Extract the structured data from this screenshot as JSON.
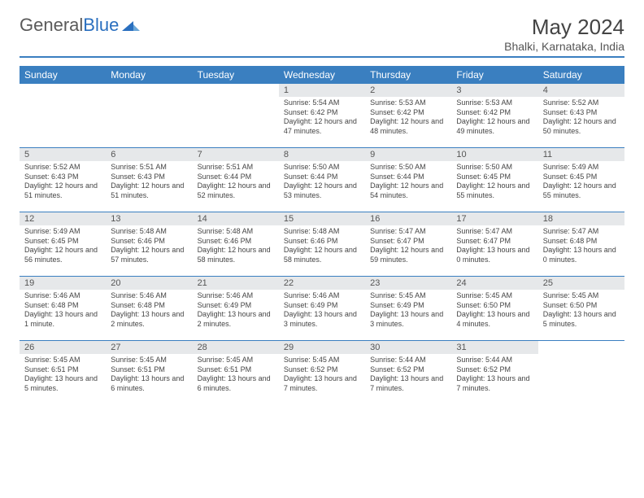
{
  "logo": {
    "word1": "General",
    "word2": "Blue"
  },
  "title": "May 2024",
  "subtitle": "Bhalki, Karnataka, India",
  "colors": {
    "header_bar": "#3a7fc0",
    "daynum_bg": "#e6e8ea",
    "text": "#444444",
    "divider": "#3a7fc0"
  },
  "fonts": {
    "title_size": 26,
    "subtitle_size": 14,
    "dayhead_size": 12,
    "cell_size": 9
  },
  "dayNames": [
    "Sunday",
    "Monday",
    "Tuesday",
    "Wednesday",
    "Thursday",
    "Friday",
    "Saturday"
  ],
  "leadingBlank": 3,
  "days": [
    {
      "n": "1",
      "sr": "5:54 AM",
      "ss": "6:42 PM",
      "dl": "12 hours and 47 minutes."
    },
    {
      "n": "2",
      "sr": "5:53 AM",
      "ss": "6:42 PM",
      "dl": "12 hours and 48 minutes."
    },
    {
      "n": "3",
      "sr": "5:53 AM",
      "ss": "6:42 PM",
      "dl": "12 hours and 49 minutes."
    },
    {
      "n": "4",
      "sr": "5:52 AM",
      "ss": "6:43 PM",
      "dl": "12 hours and 50 minutes."
    },
    {
      "n": "5",
      "sr": "5:52 AM",
      "ss": "6:43 PM",
      "dl": "12 hours and 51 minutes."
    },
    {
      "n": "6",
      "sr": "5:51 AM",
      "ss": "6:43 PM",
      "dl": "12 hours and 51 minutes."
    },
    {
      "n": "7",
      "sr": "5:51 AM",
      "ss": "6:44 PM",
      "dl": "12 hours and 52 minutes."
    },
    {
      "n": "8",
      "sr": "5:50 AM",
      "ss": "6:44 PM",
      "dl": "12 hours and 53 minutes."
    },
    {
      "n": "9",
      "sr": "5:50 AM",
      "ss": "6:44 PM",
      "dl": "12 hours and 54 minutes."
    },
    {
      "n": "10",
      "sr": "5:50 AM",
      "ss": "6:45 PM",
      "dl": "12 hours and 55 minutes."
    },
    {
      "n": "11",
      "sr": "5:49 AM",
      "ss": "6:45 PM",
      "dl": "12 hours and 55 minutes."
    },
    {
      "n": "12",
      "sr": "5:49 AM",
      "ss": "6:45 PM",
      "dl": "12 hours and 56 minutes."
    },
    {
      "n": "13",
      "sr": "5:48 AM",
      "ss": "6:46 PM",
      "dl": "12 hours and 57 minutes."
    },
    {
      "n": "14",
      "sr": "5:48 AM",
      "ss": "6:46 PM",
      "dl": "12 hours and 58 minutes."
    },
    {
      "n": "15",
      "sr": "5:48 AM",
      "ss": "6:46 PM",
      "dl": "12 hours and 58 minutes."
    },
    {
      "n": "16",
      "sr": "5:47 AM",
      "ss": "6:47 PM",
      "dl": "12 hours and 59 minutes."
    },
    {
      "n": "17",
      "sr": "5:47 AM",
      "ss": "6:47 PM",
      "dl": "13 hours and 0 minutes."
    },
    {
      "n": "18",
      "sr": "5:47 AM",
      "ss": "6:48 PM",
      "dl": "13 hours and 0 minutes."
    },
    {
      "n": "19",
      "sr": "5:46 AM",
      "ss": "6:48 PM",
      "dl": "13 hours and 1 minute."
    },
    {
      "n": "20",
      "sr": "5:46 AM",
      "ss": "6:48 PM",
      "dl": "13 hours and 2 minutes."
    },
    {
      "n": "21",
      "sr": "5:46 AM",
      "ss": "6:49 PM",
      "dl": "13 hours and 2 minutes."
    },
    {
      "n": "22",
      "sr": "5:46 AM",
      "ss": "6:49 PM",
      "dl": "13 hours and 3 minutes."
    },
    {
      "n": "23",
      "sr": "5:45 AM",
      "ss": "6:49 PM",
      "dl": "13 hours and 3 minutes."
    },
    {
      "n": "24",
      "sr": "5:45 AM",
      "ss": "6:50 PM",
      "dl": "13 hours and 4 minutes."
    },
    {
      "n": "25",
      "sr": "5:45 AM",
      "ss": "6:50 PM",
      "dl": "13 hours and 5 minutes."
    },
    {
      "n": "26",
      "sr": "5:45 AM",
      "ss": "6:51 PM",
      "dl": "13 hours and 5 minutes."
    },
    {
      "n": "27",
      "sr": "5:45 AM",
      "ss": "6:51 PM",
      "dl": "13 hours and 6 minutes."
    },
    {
      "n": "28",
      "sr": "5:45 AM",
      "ss": "6:51 PM",
      "dl": "13 hours and 6 minutes."
    },
    {
      "n": "29",
      "sr": "5:45 AM",
      "ss": "6:52 PM",
      "dl": "13 hours and 7 minutes."
    },
    {
      "n": "30",
      "sr": "5:44 AM",
      "ss": "6:52 PM",
      "dl": "13 hours and 7 minutes."
    },
    {
      "n": "31",
      "sr": "5:44 AM",
      "ss": "6:52 PM",
      "dl": "13 hours and 7 minutes."
    }
  ],
  "labels": {
    "sunrise": "Sunrise:",
    "sunset": "Sunset:",
    "daylight": "Daylight:"
  }
}
